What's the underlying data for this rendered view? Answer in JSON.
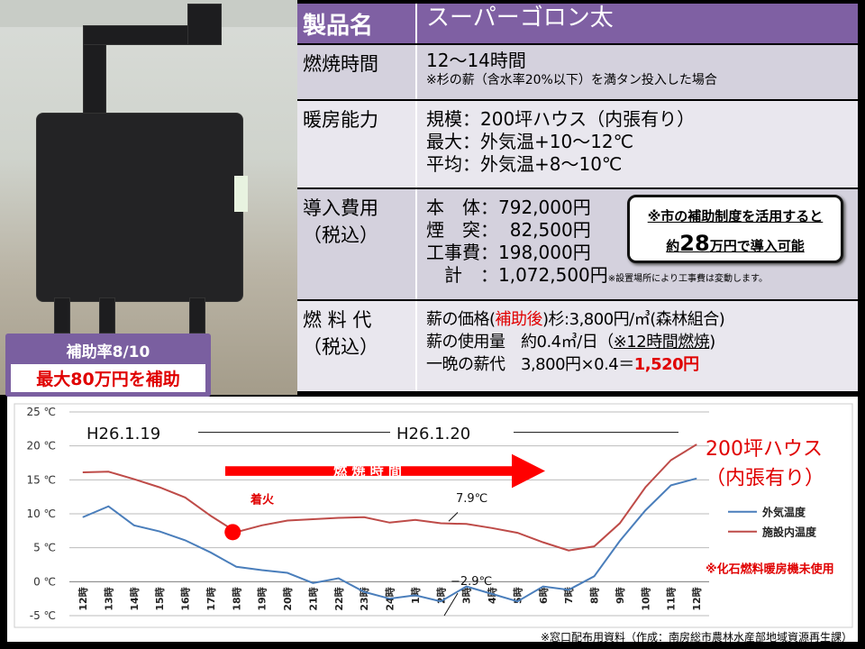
{
  "photo": {
    "badge": {
      "rate": "補助率8/10",
      "max": "最大80万円を補助"
    }
  },
  "table": {
    "header": {
      "key": "製品名",
      "value": "スーパーゴロン太"
    },
    "rows": [
      {
        "key": "燃焼時間",
        "lines": [
          "12〜14時間"
        ],
        "note": "※杉の薪（含水率20%以下）を満タン投入した場合"
      },
      {
        "key": "暖房能力",
        "lines": [
          "規模：200坪ハウス（内張有り）",
          "最大：外気温+10〜12℃",
          "平均：外気温+8〜10℃"
        ]
      },
      {
        "key": "導入費用",
        "key2": "（税込）",
        "lines": [
          "本　体：792,000円",
          "煙　突：  82,500円",
          "工事費：198,000円",
          "　計　：1,072,500円"
        ],
        "note": "※設置場所により工事費は変動します。"
      },
      {
        "key": "燃 料 代",
        "key2": "（税込）",
        "lines": [
          "薪の価格(",
          "補助後",
          ")杉:3,800円/㎥(森林組合)",
          "薪の使用量　約0.4㎥/日（",
          "※12時間燃焼",
          ")",
          "一晩の薪代　3,800円×0.4＝",
          "1,520円"
        ]
      }
    ],
    "callout": {
      "line1": "※市の補助制度を活用すると",
      "pre": "約",
      "amount": "28",
      "post": "万円で導入可能"
    }
  },
  "chart_data": {
    "type": "line",
    "categories": [
      "12時",
      "13時",
      "14時",
      "15時",
      "16時",
      "17時",
      "18時",
      "19時",
      "20時",
      "21時",
      "22時",
      "23時",
      "24時",
      "1時",
      "2時",
      "3時",
      "4時",
      "5時",
      "6時",
      "7時",
      "8時",
      "9時",
      "10時",
      "11時",
      "12時"
    ],
    "yticks": [
      "25 ℃",
      "20 ℃",
      "15 ℃",
      "10 ℃",
      "5 ℃",
      "0 ℃",
      "-5 ℃"
    ],
    "ylim": [
      -5,
      25
    ],
    "grid": true,
    "legend": "right",
    "series": [
      {
        "name": "外気温度",
        "color": "#4a7ebb",
        "values": [
          9.5,
          11.1,
          8.3,
          7.4,
          6.1,
          4.3,
          2.2,
          1.7,
          1.3,
          -0.2,
          0.5,
          -1.5,
          -2.5,
          -2.0,
          -2.9,
          -0.7,
          -1.8,
          -2.9,
          -0.7,
          -1.2,
          0.8,
          6.0,
          10.5,
          14.2,
          15.2
        ]
      },
      {
        "name": "施設内温度",
        "color": "#be4b48",
        "values": [
          16.1,
          16.2,
          15.1,
          13.9,
          12.4,
          9.7,
          7.3,
          8.3,
          9.0,
          9.2,
          9.4,
          9.5,
          8.7,
          9.1,
          8.6,
          8.5,
          7.9,
          7.2,
          5.8,
          4.6,
          5.2,
          8.6,
          13.9,
          17.9,
          20.2
        ]
      }
    ],
    "annotations": {
      "date1": "H26.1.19",
      "date2": "H26.1.20",
      "burn": "燃 焼 時 間",
      "ignite": "着火",
      "max": "7.9℃",
      "min": "−2.9℃",
      "house1": "200坪ハウス",
      "house2": "（内張有り）",
      "nofossil": "※化石燃料暖房機未使用"
    }
  },
  "credit": "※窓口配布用資料（作成：南房総市農林水産部地域資源再生課）"
}
